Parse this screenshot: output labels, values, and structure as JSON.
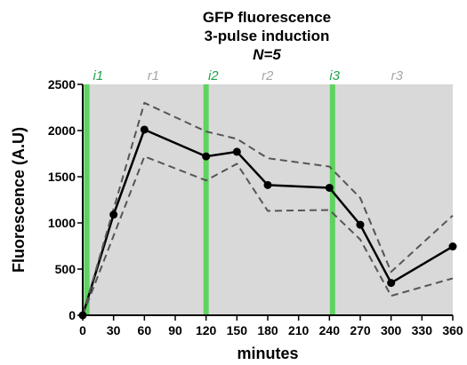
{
  "chart_data": {
    "type": "line",
    "title_lines": [
      "GFP fluorescence",
      "3-pulse induction"
    ],
    "subtitle": "N=5",
    "xlabel": "minutes",
    "ylabel": "Fluorescence  (A.U)",
    "xlim": [
      0,
      360
    ],
    "ylim": [
      0,
      2500
    ],
    "xticks": [
      0,
      30,
      60,
      90,
      120,
      150,
      180,
      210,
      240,
      270,
      300,
      330,
      360
    ],
    "yticks": [
      0,
      500,
      1000,
      1500,
      2000,
      2500
    ],
    "plot_background": "#d9d9d9",
    "grid": false,
    "legend": "none",
    "series": [
      {
        "role": "mean",
        "color": "#000000",
        "line_style": "solid",
        "markers": true,
        "x": [
          0,
          30,
          60,
          120,
          150,
          180,
          240,
          270,
          300,
          360
        ],
        "y": [
          0,
          1090,
          2010,
          1720,
          1770,
          1410,
          1380,
          980,
          350,
          745
        ]
      },
      {
        "role": "upper-bound",
        "color": "#555555",
        "line_style": "dashed",
        "markers": false,
        "x": [
          0,
          60,
          120,
          150,
          180,
          240,
          270,
          300,
          360
        ],
        "y": [
          0,
          2300,
          1990,
          1910,
          1700,
          1610,
          1270,
          470,
          1080
        ]
      },
      {
        "role": "lower-bound",
        "color": "#555555",
        "line_style": "dashed",
        "markers": false,
        "x": [
          0,
          60,
          120,
          150,
          180,
          240,
          270,
          300,
          360
        ],
        "y": [
          0,
          1720,
          1460,
          1640,
          1130,
          1140,
          820,
          210,
          400
        ]
      }
    ],
    "phases": [
      {
        "label": "i1",
        "x": 4,
        "label_x": 10,
        "type": "induction",
        "color": "#5fd35f",
        "label_color": "#22a04b"
      },
      {
        "label": "r1",
        "label_x": 63,
        "type": "recovery",
        "label_color": "#a6a6a6"
      },
      {
        "label": "i2",
        "x": 120,
        "label_x": 122,
        "type": "induction",
        "color": "#5fd35f",
        "label_color": "#22a04b"
      },
      {
        "label": "r2",
        "label_x": 174,
        "type": "recovery",
        "label_color": "#a6a6a6"
      },
      {
        "label": "i3",
        "x": 243,
        "label_x": 240,
        "type": "induction",
        "color": "#5fd35f",
        "label_color": "#22a04b"
      },
      {
        "label": "r3",
        "label_x": 300,
        "type": "recovery",
        "label_color": "#a6a6a6"
      }
    ]
  }
}
